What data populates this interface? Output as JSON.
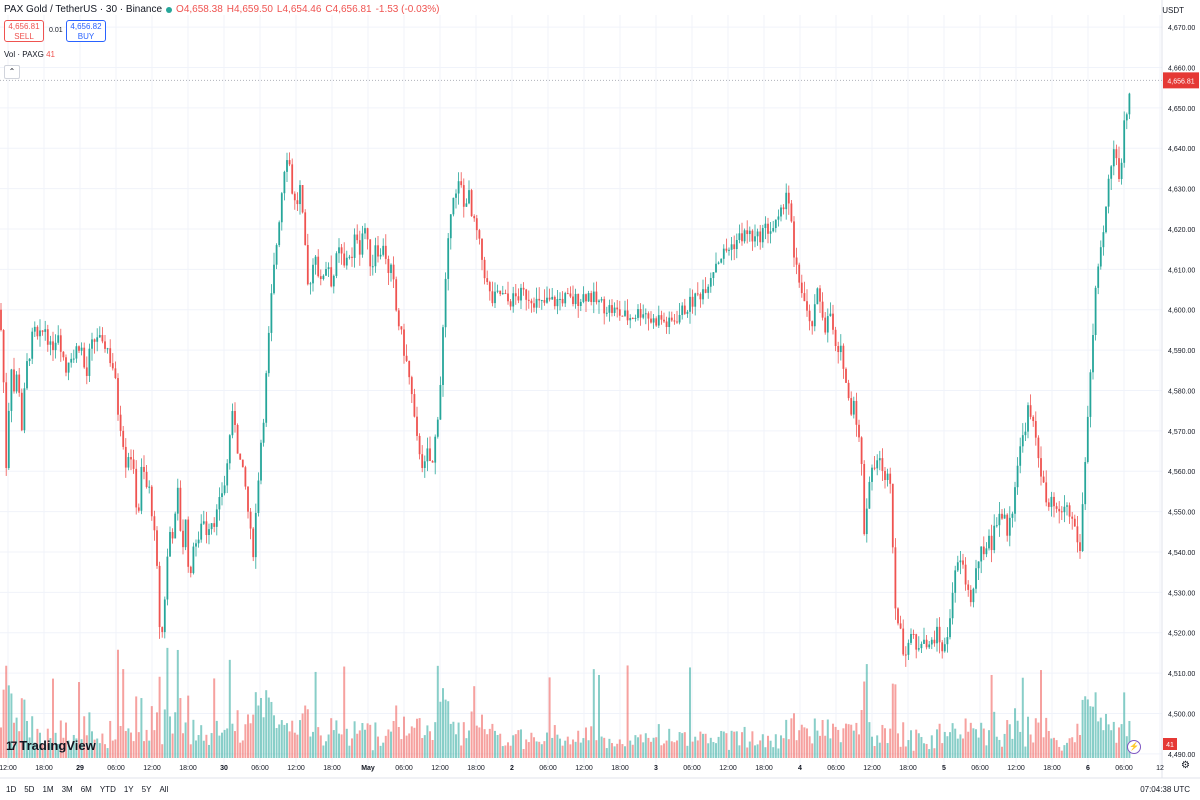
{
  "header": {
    "symbol": "PAX Gold / TetherUS · 30 · Binance",
    "open": "O4,658.38",
    "high": "H4,659.50",
    "low": "L4,654.46",
    "close": "C4,656.81",
    "change": "-1.53 (-0.03%)",
    "sell_price": "4,656.81",
    "sell_label": "SELL",
    "spread": "0.01",
    "buy_price": "4,656.82",
    "buy_label": "BUY",
    "volume_label": "Vol · PAXG",
    "volume_value": "41",
    "currency": "USDT",
    "collapse_icon": "⌃"
  },
  "footer": {
    "logo_mark": "17",
    "logo_text": "TradingView",
    "timeframes": [
      "1D",
      "5D",
      "1M",
      "3M",
      "6M",
      "YTD",
      "1Y",
      "5Y",
      "All"
    ],
    "time": "07:04:38 UTC",
    "settings_icon": "⚙",
    "event_flag": "⚡"
  },
  "colors": {
    "up": "#26a69a",
    "down": "#ef5350",
    "grid": "#f0f3fa",
    "last_price": "#e53935"
  },
  "chart_data": {
    "type": "candlestick",
    "price_axis": {
      "ticks": [
        4490,
        4500,
        4510,
        4520,
        4530,
        4540,
        4550,
        4560,
        4570,
        4580,
        4590,
        4600,
        4610,
        4620,
        4630,
        4640,
        4650,
        4660,
        4670
      ],
      "tick_labels": [
        "4,490.00",
        "4,500.00",
        "4,510.00",
        "4,520.00",
        "4,530.00",
        "4,540.00",
        "4,550.00",
        "4,560.00",
        "4,570.00",
        "4,580.00",
        "4,590.00",
        "4,600.00",
        "4,610.00",
        "4,620.00",
        "4,630.00",
        "4,640.00",
        "4,650.00",
        "4,660.00",
        "4,670.00"
      ],
      "range": [
        4486,
        4673
      ]
    },
    "time_axis": {
      "labels": [
        "12:00",
        "18:00",
        "29",
        "06:00",
        "12:00",
        "18:00",
        "30",
        "06:00",
        "12:00",
        "18:00",
        "May",
        "06:00",
        "12:00",
        "18:00",
        "2",
        "06:00",
        "12:00",
        "18:00",
        "3",
        "06:00",
        "12:00",
        "18:00",
        "4",
        "06:00",
        "12:00",
        "18:00",
        "5",
        "06:00",
        "12:00",
        "18:00",
        "6",
        "06:00",
        "12"
      ],
      "bold": [
        "29",
        "30",
        "May",
        "2",
        "3",
        "4",
        "5",
        "6"
      ]
    },
    "last_price": 4656.81,
    "last_price_label": "4,656.81",
    "last_volume_label": "41",
    "price_path": [
      [
        0,
        4600
      ],
      [
        4,
        4580
      ],
      [
        7,
        4555
      ],
      [
        10,
        4590
      ],
      [
        14,
        4580
      ],
      [
        18,
        4585
      ],
      [
        22,
        4570
      ],
      [
        26,
        4585
      ],
      [
        30,
        4590
      ],
      [
        34,
        4595
      ],
      [
        38,
        4592
      ],
      [
        42,
        4594
      ],
      [
        46,
        4596
      ],
      [
        50,
        4590
      ],
      [
        54,
        4592
      ],
      [
        58,
        4595
      ],
      [
        62,
        4590
      ],
      [
        66,
        4585
      ],
      [
        70,
        4590
      ],
      [
        74,
        4588
      ],
      [
        78,
        4592
      ],
      [
        82,
        4590
      ],
      [
        86,
        4582
      ],
      [
        90,
        4590
      ],
      [
        94,
        4592
      ],
      [
        98,
        4594
      ],
      [
        102,
        4590
      ],
      [
        106,
        4592
      ],
      [
        110,
        4588
      ],
      [
        114,
        4585
      ],
      [
        118,
        4575
      ],
      [
        122,
        4570
      ],
      [
        126,
        4562
      ],
      [
        130,
        4566
      ],
      [
        134,
        4558
      ],
      [
        138,
        4548
      ],
      [
        142,
        4562
      ],
      [
        146,
        4556
      ],
      [
        150,
        4555
      ],
      [
        154,
        4545
      ],
      [
        157,
        4535
      ],
      [
        160,
        4520
      ],
      [
        163,
        4520
      ],
      [
        166,
        4535
      ],
      [
        170,
        4545
      ],
      [
        174,
        4545
      ],
      [
        178,
        4555
      ],
      [
        182,
        4540
      ],
      [
        186,
        4548
      ],
      [
        190,
        4530
      ],
      [
        194,
        4545
      ],
      [
        198,
        4540
      ],
      [
        202,
        4550
      ],
      [
        206,
        4545
      ],
      [
        210,
        4548
      ],
      [
        214,
        4548
      ],
      [
        218,
        4550
      ],
      [
        222,
        4555
      ],
      [
        226,
        4558
      ],
      [
        230,
        4570
      ],
      [
        234,
        4575
      ],
      [
        238,
        4565
      ],
      [
        242,
        4560
      ],
      [
        246,
        4555
      ],
      [
        250,
        4545
      ],
      [
        253,
        4540
      ],
      [
        256,
        4550
      ],
      [
        260,
        4565
      ],
      [
        264,
        4575
      ],
      [
        268,
        4590
      ],
      [
        272,
        4605
      ],
      [
        276,
        4615
      ],
      [
        280,
        4625
      ],
      [
        284,
        4635
      ],
      [
        288,
        4640
      ],
      [
        292,
        4630
      ],
      [
        296,
        4625
      ],
      [
        300,
        4630
      ],
      [
        304,
        4618
      ],
      [
        308,
        4605
      ],
      [
        312,
        4610
      ],
      [
        316,
        4615
      ],
      [
        320,
        4605
      ],
      [
        324,
        4610
      ],
      [
        328,
        4612
      ],
      [
        332,
        4606
      ],
      [
        336,
        4612
      ],
      [
        340,
        4615
      ],
      [
        344,
        4610
      ],
      [
        348,
        4615
      ],
      [
        352,
        4612
      ],
      [
        356,
        4620
      ],
      [
        360,
        4615
      ],
      [
        364,
        4622
      ],
      [
        368,
        4615
      ],
      [
        372,
        4610
      ],
      [
        376,
        4618
      ],
      [
        380,
        4612
      ],
      [
        384,
        4618
      ],
      [
        388,
        4608
      ],
      [
        392,
        4610
      ],
      [
        396,
        4600
      ],
      [
        400,
        4595
      ],
      [
        404,
        4590
      ],
      [
        408,
        4585
      ],
      [
        412,
        4578
      ],
      [
        416,
        4568
      ],
      [
        420,
        4565
      ],
      [
        424,
        4560
      ],
      [
        428,
        4565
      ],
      [
        432,
        4560
      ],
      [
        436,
        4570
      ],
      [
        440,
        4580
      ],
      [
        444,
        4600
      ],
      [
        448,
        4615
      ],
      [
        452,
        4630
      ],
      [
        456,
        4628
      ],
      [
        460,
        4632
      ],
      [
        464,
        4625
      ],
      [
        468,
        4630
      ],
      [
        472,
        4622
      ],
      [
        476,
        4620
      ],
      [
        480,
        4615
      ],
      [
        484,
        4610
      ],
      [
        488,
        4605
      ],
      [
        492,
        4602
      ],
      [
        500,
        4604
      ],
      [
        508,
        4602
      ],
      [
        516,
        4603
      ],
      [
        524,
        4604
      ],
      [
        532,
        4603
      ],
      [
        540,
        4601
      ],
      [
        548,
        4602
      ],
      [
        556,
        4602
      ],
      [
        564,
        4603
      ],
      [
        572,
        4602
      ],
      [
        580,
        4603
      ],
      [
        588,
        4604
      ],
      [
        596,
        4602
      ],
      [
        604,
        4601
      ],
      [
        612,
        4600
      ],
      [
        620,
        4599
      ],
      [
        628,
        4598
      ],
      [
        636,
        4599
      ],
      [
        644,
        4600
      ],
      [
        652,
        4597
      ],
      [
        660,
        4598
      ],
      [
        668,
        4596
      ],
      [
        676,
        4598
      ],
      [
        684,
        4600
      ],
      [
        692,
        4602
      ],
      [
        700,
        4604
      ],
      [
        708,
        4607
      ],
      [
        716,
        4612
      ],
      [
        724,
        4614
      ],
      [
        732,
        4616
      ],
      [
        740,
        4618
      ],
      [
        748,
        4619
      ],
      [
        756,
        4617
      ],
      [
        764,
        4620
      ],
      [
        772,
        4620
      ],
      [
        780,
        4622
      ],
      [
        786,
        4630
      ],
      [
        790,
        4625
      ],
      [
        794,
        4612
      ],
      [
        798,
        4608
      ],
      [
        802,
        4605
      ],
      [
        806,
        4600
      ],
      [
        810,
        4595
      ],
      [
        814,
        4598
      ],
      [
        818,
        4605
      ],
      [
        822,
        4600
      ],
      [
        826,
        4595
      ],
      [
        830,
        4600
      ],
      [
        834,
        4592
      ],
      [
        838,
        4588
      ],
      [
        842,
        4590
      ],
      [
        846,
        4582
      ],
      [
        850,
        4575
      ],
      [
        854,
        4578
      ],
      [
        858,
        4570
      ],
      [
        862,
        4560
      ],
      [
        864,
        4545
      ],
      [
        868,
        4555
      ],
      [
        872,
        4562
      ],
      [
        876,
        4560
      ],
      [
        880,
        4565
      ],
      [
        884,
        4555
      ],
      [
        888,
        4562
      ],
      [
        890,
        4560
      ],
      [
        893,
        4540
      ],
      [
        896,
        4525
      ],
      [
        900,
        4520
      ],
      [
        904,
        4515
      ],
      [
        908,
        4518
      ],
      [
        912,
        4520
      ],
      [
        916,
        4515
      ],
      [
        920,
        4518
      ],
      [
        924,
        4520
      ],
      [
        928,
        4515
      ],
      [
        932,
        4518
      ],
      [
        936,
        4520
      ],
      [
        940,
        4518
      ],
      [
        944,
        4515
      ],
      [
        948,
        4520
      ],
      [
        952,
        4530
      ],
      [
        956,
        4535
      ],
      [
        960,
        4538
      ],
      [
        964,
        4535
      ],
      [
        968,
        4530
      ],
      [
        972,
        4528
      ],
      [
        976,
        4535
      ],
      [
        980,
        4540
      ],
      [
        984,
        4538
      ],
      [
        988,
        4545
      ],
      [
        992,
        4542
      ],
      [
        996,
        4548
      ],
      [
        1000,
        4550
      ],
      [
        1004,
        4548
      ],
      [
        1008,
        4545
      ],
      [
        1012,
        4550
      ],
      [
        1016,
        4560
      ],
      [
        1020,
        4565
      ],
      [
        1024,
        4570
      ],
      [
        1028,
        4575
      ],
      [
        1032,
        4572
      ],
      [
        1036,
        4568
      ],
      [
        1040,
        4562
      ],
      [
        1044,
        4555
      ],
      [
        1048,
        4550
      ],
      [
        1052,
        4552
      ],
      [
        1056,
        4550
      ],
      [
        1060,
        4548
      ],
      [
        1064,
        4552
      ],
      [
        1068,
        4550
      ],
      [
        1072,
        4548
      ],
      [
        1076,
        4545
      ],
      [
        1080,
        4540
      ],
      [
        1084,
        4558
      ],
      [
        1088,
        4575
      ],
      [
        1092,
        4590
      ],
      [
        1096,
        4605
      ],
      [
        1100,
        4612
      ],
      [
        1104,
        4620
      ],
      [
        1108,
        4630
      ],
      [
        1112,
        4638
      ],
      [
        1116,
        4640
      ],
      [
        1120,
        4632
      ],
      [
        1124,
        4645
      ],
      [
        1128,
        4652
      ],
      [
        1132,
        4656.81
      ]
    ]
  }
}
